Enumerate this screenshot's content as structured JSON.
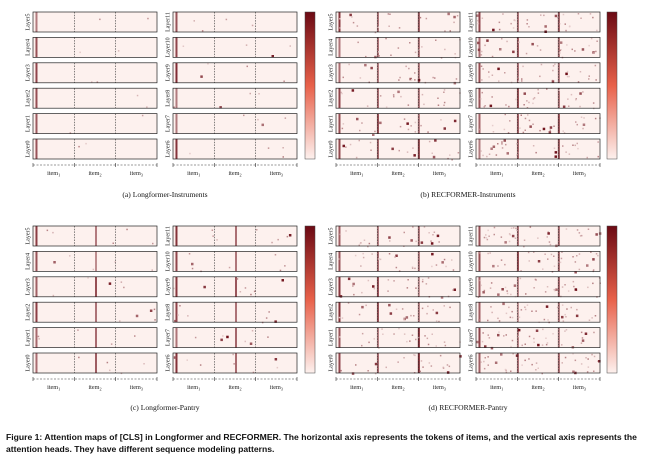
{
  "figure": {
    "caption": "Figure 1: Attention maps of [CLS] in Longformer and RECFORMER. The horizontal axis represents the tokens of items, and the vertical axis represents the attention heads. They have different sequence modeling patterns.",
    "colormap": {
      "low": "#fdf1ee",
      "high": "#6b0a14",
      "border": "#222222"
    }
  },
  "chart_data": [
    {
      "type": "heatmap",
      "title": "(a) Longformer-Instruments",
      "x_tick_labels": [
        "item1",
        "item2",
        "item3"
      ],
      "rows_left": [
        "Layer5",
        "Layer4",
        "Layer3",
        "Layer2",
        "Layer1",
        "Layer0"
      ],
      "rows_right": [
        "Layer11",
        "Layer10",
        "Layer9",
        "Layer8",
        "Layer7",
        "Layer6"
      ],
      "colorbar": true
    },
    {
      "type": "heatmap",
      "title": "(b) RECFORMER-Instruments",
      "x_tick_labels": [
        "item1",
        "item2",
        "item3"
      ],
      "rows_left": [
        "Layer5",
        "Layer4",
        "Layer3",
        "Layer2",
        "Layer1",
        "Layer0"
      ],
      "rows_right": [
        "Layer11",
        "Layer10",
        "Layer9",
        "Layer8",
        "Layer7",
        "Layer6"
      ],
      "colorbar": true
    },
    {
      "type": "heatmap",
      "title": "(c) Longformer-Pantry",
      "x_tick_labels": [
        "item1",
        "item2",
        "item3"
      ],
      "rows_left": [
        "Layer5",
        "Layer4",
        "Layer3",
        "Layer2",
        "Layer1",
        "Layer0"
      ],
      "rows_right": [
        "Layer11",
        "Layer10",
        "Layer9",
        "Layer8",
        "Layer7",
        "Layer6"
      ],
      "colorbar": true
    },
    {
      "type": "heatmap",
      "title": "(d) RECFORMER-Pantry",
      "x_tick_labels": [
        "item1",
        "item2",
        "item3"
      ],
      "rows_left": [
        "Layer5",
        "Layer4",
        "Layer3",
        "Layer2",
        "Layer1",
        "Layer0"
      ],
      "rows_right": [
        "Layer11",
        "Layer10",
        "Layer9",
        "Layer8",
        "Layer7",
        "Layer6"
      ],
      "colorbar": true
    }
  ]
}
